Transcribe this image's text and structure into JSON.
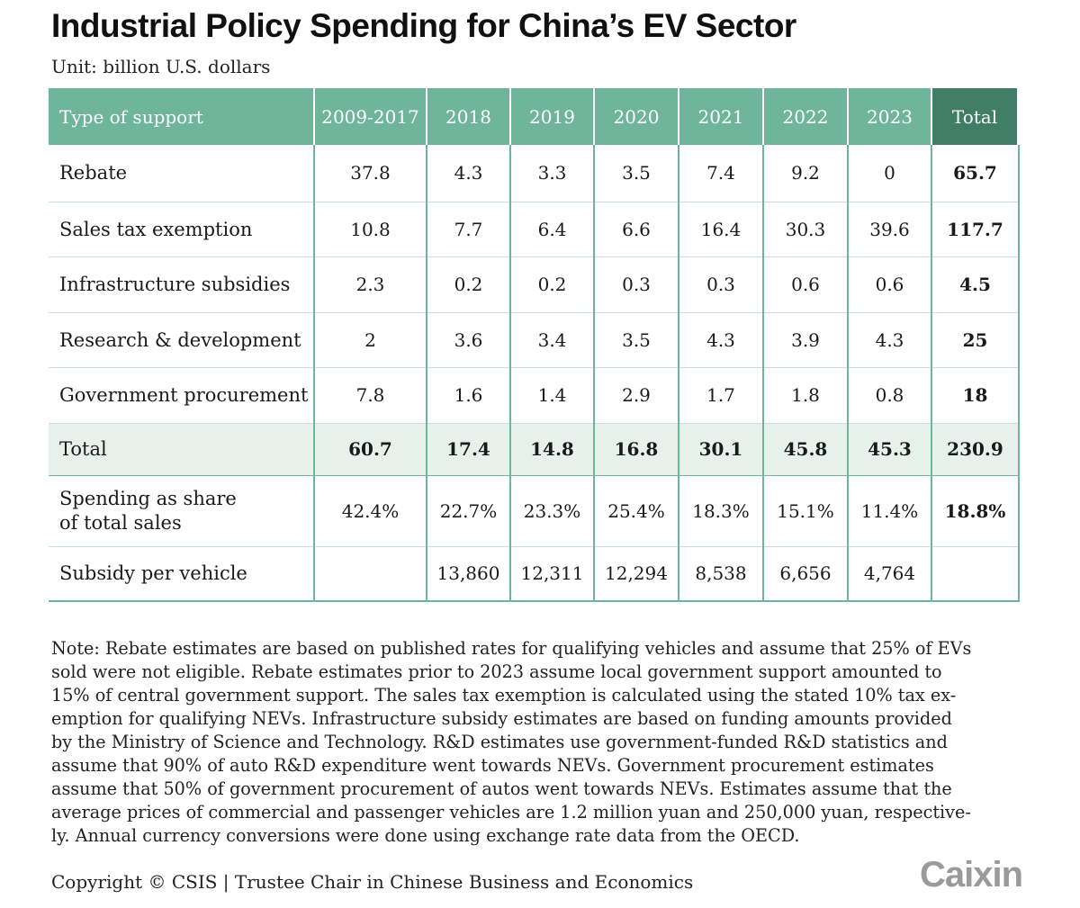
{
  "title": "Industrial Policy Spending for China’s EV Sector",
  "unit": "Unit: billion U.S. dollars",
  "colors": {
    "header": "#6fb59c",
    "header_total": "#3f7d66",
    "total_row": "#e6f1ec"
  },
  "chart_data": {
    "type": "table",
    "title": "Industrial Policy Spending for China’s EV Sector",
    "unit": "Unit: billion U.S. dollars",
    "columns": [
      "Type of support",
      "2009-2017",
      "2018",
      "2019",
      "2020",
      "2021",
      "2022",
      "2023",
      "Total"
    ],
    "rows": [
      {
        "label": "Rebate",
        "values": [
          "37.8",
          "4.3",
          "3.3",
          "3.5",
          "7.4",
          "9.2",
          "0"
        ],
        "total": "65.7"
      },
      {
        "label": "Sales tax exemption",
        "values": [
          "10.8",
          "7.7",
          "6.4",
          "6.6",
          "16.4",
          "30.3",
          "39.6"
        ],
        "total": "117.7"
      },
      {
        "label": "Infrastructure subsidies",
        "values": [
          "2.3",
          "0.2",
          "0.2",
          "0.3",
          "0.3",
          "0.6",
          "0.6"
        ],
        "total": "4.5"
      },
      {
        "label": "Research & development",
        "values": [
          "2",
          "3.6",
          "3.4",
          "3.5",
          "4.3",
          "3.9",
          "4.3"
        ],
        "total": "25"
      },
      {
        "label": "Government procurement",
        "values": [
          "7.8",
          "1.6",
          "1.4",
          "2.9",
          "1.7",
          "1.8",
          "0.8"
        ],
        "total": "18"
      },
      {
        "label": "Total",
        "values": [
          "60.7",
          "17.4",
          "14.8",
          "16.8",
          "30.1",
          "45.8",
          "45.3"
        ],
        "total": "230.9"
      },
      {
        "label_lines": [
          "Spending as share",
          "of total sales"
        ],
        "values": [
          "42.4%",
          "22.7%",
          "23.3%",
          "25.4%",
          "18.3%",
          "15.1%",
          "11.4%"
        ],
        "total": "18.8%"
      },
      {
        "label": "Subsidy per vehicle",
        "values": [
          "",
          "13,860",
          "12,311",
          "12,294",
          "8,538",
          "6,656",
          "4,764"
        ],
        "total": ""
      }
    ]
  },
  "note_lines": [
    "Note: Rebate estimates are based on published rates for qualifying vehicles and assume that 25% of EVs",
    "sold were not eligible. Rebate estimates prior to 2023 assume local government support amounted to",
    "15% of central government support. The sales tax exemption is calculated using the stated 10% tax ex-",
    "emption for qualifying NEVs. Infrastructure subsidy estimates are based on funding amounts provided",
    "by the Ministry of Science and Technology. R&D estimates use government-funded R&D statistics and",
    "assume that 90% of auto R&D expenditure went towards NEVs. Government procurement estimates",
    "assume that 50% of government procurement of autos went towards NEVs. Estimates assume that the",
    "average prices of commercial and passenger vehicles are 1.2 million yuan and 250,000 yuan, respective-",
    "ly. Annual currency conversions were done using exchange rate data from the OECD."
  ],
  "copyright": "Copyright © CSIS | Trustee Chair in Chinese Business and Economics",
  "logo": "Caixin"
}
